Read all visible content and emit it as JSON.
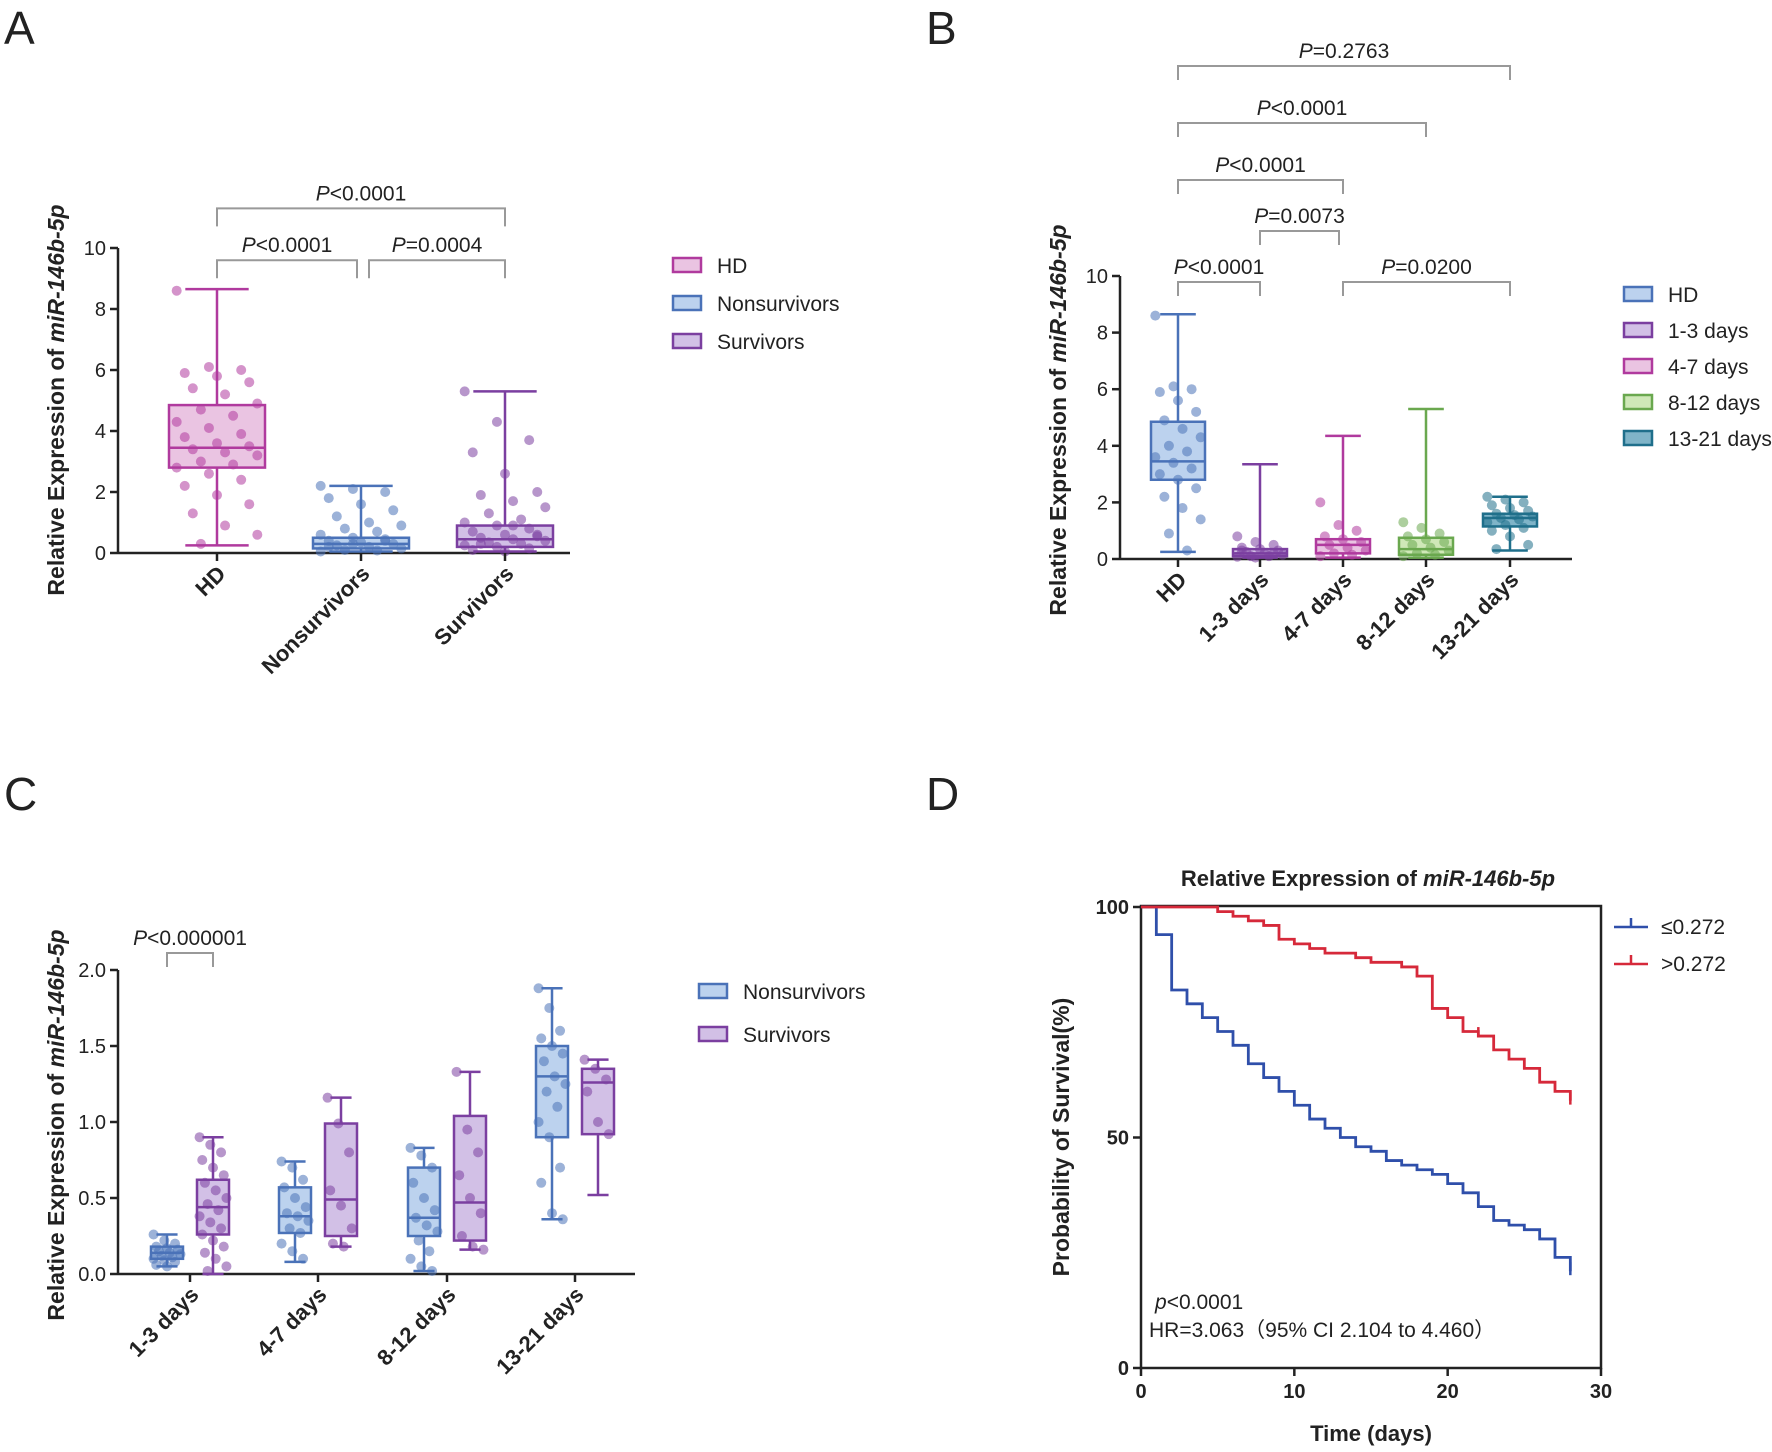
{
  "panels": {
    "A": {
      "letter": "A"
    },
    "B": {
      "letter": "B"
    },
    "C": {
      "letter": "C"
    },
    "D": {
      "letter": "D"
    }
  },
  "chart_data": [
    {
      "panel": "A",
      "type": "box",
      "ylabel_prefix": "Relative Expression of ",
      "ylabel_gene": "miR-146b-5p",
      "ylim": [
        0,
        10
      ],
      "yticks": [
        "0",
        "2",
        "4",
        "6",
        "8",
        "10"
      ],
      "categories": [
        "HD",
        "Nonsurvivors",
        "Survivors"
      ],
      "legend": [
        "HD",
        "Nonsurvivors",
        "Survivors"
      ],
      "colors": {
        "HD": "#b03a9e",
        "Nonsurvivors": "#4a72b8",
        "Survivors": "#7b3fa0"
      },
      "fills": {
        "HD": "#eac4e2",
        "Nonsurvivors": "#bcd2ee",
        "Survivors": "#d2c0e6"
      },
      "series": [
        {
          "name": "HD",
          "min": 0.25,
          "q1": 2.8,
          "median": 3.45,
          "q3": 4.85,
          "max": 8.65,
          "points": [
            8.6,
            6.1,
            6.0,
            5.9,
            5.8,
            5.6,
            5.4,
            5.2,
            4.9,
            4.7,
            4.5,
            4.3,
            4.1,
            3.9,
            3.8,
            3.6,
            3.5,
            3.4,
            3.3,
            3.2,
            3.0,
            2.9,
            2.8,
            2.6,
            2.4,
            2.2,
            1.9,
            1.6,
            1.3,
            0.9,
            0.6,
            0.3
          ]
        },
        {
          "name": "Nonsurvivors",
          "min": 0.05,
          "q1": 0.15,
          "median": 0.3,
          "q3": 0.5,
          "max": 2.2,
          "points": [
            2.2,
            2.1,
            2.0,
            1.8,
            1.6,
            1.4,
            1.2,
            1.0,
            0.9,
            0.8,
            0.7,
            0.6,
            0.5,
            0.45,
            0.4,
            0.35,
            0.3,
            0.25,
            0.2,
            0.15,
            0.1,
            0.08,
            0.05,
            0.3,
            0.4,
            0.2
          ]
        },
        {
          "name": "Survivors",
          "min": 0.05,
          "q1": 0.2,
          "median": 0.45,
          "q3": 0.9,
          "max": 5.3,
          "points": [
            5.3,
            4.3,
            3.7,
            3.3,
            2.6,
            2.0,
            1.9,
            1.7,
            1.5,
            1.3,
            1.1,
            1.0,
            0.9,
            0.8,
            0.7,
            0.6,
            0.55,
            0.5,
            0.45,
            0.4,
            0.35,
            0.3,
            0.25,
            0.2,
            0.15,
            0.1,
            0.05,
            0.6,
            0.3,
            0.9
          ]
        }
      ],
      "comparisons": [
        {
          "from": 0,
          "to": 2,
          "y": 11.3,
          "label": "<0.0001"
        },
        {
          "from": 0,
          "to": 1,
          "y": 9.6,
          "label": "<0.0001"
        },
        {
          "from": 1,
          "to": 2,
          "y": 9.6,
          "label": "=0.0004"
        }
      ]
    },
    {
      "panel": "B",
      "type": "box",
      "ylabel_prefix": "Relative Expression of ",
      "ylabel_gene": "miR-146b-5p",
      "ylim": [
        0,
        10
      ],
      "yticks": [
        "0",
        "2",
        "4",
        "6",
        "8",
        "10"
      ],
      "categories": [
        "HD",
        "1-3 days",
        "4-7 days",
        "8-12 days",
        "13-21 days"
      ],
      "legend": [
        "HD",
        "1-3 days",
        "4-7 days",
        "8-12 days",
        "13-21 days"
      ],
      "colors": {
        "HD": "#4a72b8",
        "1-3 days": "#7b3fa0",
        "4-7 days": "#b03a9e",
        "8-12 days": "#6aa84f",
        "13-21 days": "#1f6f8b"
      },
      "fills": {
        "HD": "#bcd2ee",
        "1-3 days": "#d2c0e6",
        "4-7 days": "#eac4e2",
        "8-12 days": "#cfe8b8",
        "13-21 days": "#7fb4c8"
      },
      "series": [
        {
          "name": "HD",
          "min": 0.25,
          "q1": 2.8,
          "median": 3.45,
          "q3": 4.85,
          "max": 8.65,
          "points": [
            8.6,
            6.1,
            6.0,
            5.9,
            5.6,
            5.2,
            4.9,
            4.6,
            4.3,
            4.0,
            3.8,
            3.6,
            3.4,
            3.2,
            3.0,
            2.8,
            2.5,
            2.2,
            1.8,
            1.4,
            0.9,
            0.3
          ]
        },
        {
          "name": "1-3 days",
          "min": 0.05,
          "q1": 0.1,
          "median": 0.2,
          "q3": 0.35,
          "max": 3.35,
          "points": [
            0.8,
            0.6,
            0.5,
            0.4,
            0.35,
            0.3,
            0.25,
            0.2,
            0.15,
            0.1,
            0.1,
            0.08,
            0.05,
            0.2,
            0.3
          ]
        },
        {
          "name": "4-7 days",
          "min": 0.05,
          "q1": 0.2,
          "median": 0.5,
          "q3": 0.7,
          "max": 4.35,
          "points": [
            2.0,
            1.2,
            1.0,
            0.8,
            0.7,
            0.6,
            0.5,
            0.4,
            0.3,
            0.2,
            0.15,
            0.1
          ]
        },
        {
          "name": "8-12 days",
          "min": 0.05,
          "q1": 0.15,
          "median": 0.35,
          "q3": 0.75,
          "max": 5.3,
          "points": [
            1.3,
            1.1,
            0.9,
            0.8,
            0.7,
            0.6,
            0.5,
            0.4,
            0.3,
            0.2,
            0.15,
            0.1
          ]
        },
        {
          "name": "13-21 days",
          "min": 0.3,
          "q1": 1.15,
          "median": 1.45,
          "q3": 1.6,
          "max": 2.2,
          "points": [
            2.2,
            2.1,
            2.0,
            1.9,
            1.8,
            1.7,
            1.6,
            1.55,
            1.5,
            1.45,
            1.4,
            1.3,
            1.2,
            1.1,
            1.0,
            0.8,
            0.5,
            0.35
          ]
        }
      ],
      "comparisons": [
        {
          "from": 0,
          "to": 4,
          "y": 17.5,
          "label": "=0.2763"
        },
        {
          "from": 0,
          "to": 3,
          "y": 15.4,
          "label": "<0.0001"
        },
        {
          "from": 0,
          "to": 2,
          "y": 13.4,
          "label": "<0.0001"
        },
        {
          "from": 1,
          "to": 2,
          "y": 11.6,
          "label": "=0.0073"
        },
        {
          "from": 0,
          "to": 1,
          "y": 9.8,
          "label": "<0.0001"
        },
        {
          "from": 2,
          "to": 4,
          "y": 9.8,
          "label": "=0.0200"
        }
      ]
    },
    {
      "panel": "C",
      "type": "box",
      "ylabel_prefix": "Relative Expression of ",
      "ylabel_gene": "miR-146b-5p",
      "ylim": [
        0,
        2.0
      ],
      "yticks": [
        "0.0",
        "0.5",
        "1.0",
        "1.5",
        "2.0"
      ],
      "categories": [
        "1-3 days",
        "4-7 days",
        "8-12 days",
        "13-21 days"
      ],
      "legend": [
        "Nonsurvivors",
        "Survivors"
      ],
      "colors": {
        "Nonsurvivors": "#4a72b8",
        "Survivors": "#7b3fa0"
      },
      "fills": {
        "Nonsurvivors": "#bcd2ee",
        "Survivors": "#d2c0e6"
      },
      "series": [
        {
          "name": "Nonsurvivors",
          "boxes": [
            {
              "min": 0.05,
              "q1": 0.1,
              "median": 0.14,
              "q3": 0.18,
              "max": 0.26,
              "points": [
                0.26,
                0.22,
                0.2,
                0.18,
                0.17,
                0.16,
                0.15,
                0.14,
                0.13,
                0.12,
                0.11,
                0.1,
                0.09,
                0.08,
                0.06,
                0.05
              ]
            },
            {
              "min": 0.08,
              "q1": 0.27,
              "median": 0.38,
              "q3": 0.57,
              "max": 0.74,
              "points": [
                0.74,
                0.7,
                0.62,
                0.57,
                0.5,
                0.44,
                0.4,
                0.38,
                0.35,
                0.3,
                0.27,
                0.2,
                0.15,
                0.1
              ]
            },
            {
              "min": 0.02,
              "q1": 0.25,
              "median": 0.37,
              "q3": 0.7,
              "max": 0.83,
              "points": [
                0.83,
                0.78,
                0.7,
                0.6,
                0.5,
                0.42,
                0.37,
                0.32,
                0.28,
                0.22,
                0.15,
                0.1,
                0.05,
                0.02
              ]
            },
            {
              "min": 0.36,
              "q1": 0.9,
              "median": 1.3,
              "q3": 1.5,
              "max": 1.88,
              "points": [
                1.88,
                1.75,
                1.6,
                1.55,
                1.5,
                1.45,
                1.4,
                1.3,
                1.25,
                1.2,
                1.1,
                1.0,
                0.9,
                0.7,
                0.6,
                0.4,
                0.36
              ]
            }
          ]
        },
        {
          "name": "Survivors",
          "boxes": [
            {
              "min": 0.0,
              "q1": 0.26,
              "median": 0.44,
              "q3": 0.62,
              "max": 0.9,
              "points": [
                0.9,
                0.85,
                0.8,
                0.75,
                0.7,
                0.65,
                0.6,
                0.55,
                0.5,
                0.46,
                0.42,
                0.38,
                0.34,
                0.3,
                0.26,
                0.22,
                0.18,
                0.14,
                0.1,
                0.05,
                0.02
              ]
            },
            {
              "min": 0.18,
              "q1": 0.25,
              "median": 0.49,
              "q3": 0.99,
              "max": 1.16,
              "points": [
                1.16,
                0.99,
                0.8,
                0.55,
                0.45,
                0.3,
                0.2,
                0.18
              ]
            },
            {
              "min": 0.16,
              "q1": 0.22,
              "median": 0.47,
              "q3": 1.04,
              "max": 1.33,
              "points": [
                1.33,
                0.95,
                0.8,
                0.65,
                0.5,
                0.4,
                0.25,
                0.18,
                0.16
              ]
            },
            {
              "min": 0.52,
              "q1": 0.92,
              "median": 1.26,
              "q3": 1.35,
              "max": 1.41,
              "points": [
                1.41,
                1.35,
                1.28,
                1.2,
                1.0,
                0.92
              ]
            }
          ]
        }
      ],
      "comparisons": [
        {
          "from": 0,
          "to": 0,
          "y": 2.13,
          "label": "<0.000001"
        }
      ]
    },
    {
      "panel": "D",
      "type": "line",
      "subtype": "kaplan-meier",
      "title_prefix": "Relative Expression of ",
      "title_gene": "miR-146b-5p",
      "xlabel": "Time (days)",
      "ylabel": "Probability of Survival(%)",
      "xlim": [
        0,
        30
      ],
      "ylim": [
        0,
        100
      ],
      "xticks": [
        "0",
        "10",
        "20",
        "30"
      ],
      "yticks": [
        "0",
        "50",
        "100"
      ],
      "legend_position": "right",
      "series": [
        {
          "name": "≤0.272",
          "color": "#2f4faa",
          "x": [
            0,
            1,
            2,
            3,
            4,
            5,
            6,
            7,
            8,
            9,
            10,
            11,
            12,
            13,
            14,
            15,
            16,
            17,
            18,
            19,
            20,
            21,
            22,
            23,
            24,
            25,
            26,
            27,
            28
          ],
          "y": [
            100,
            94,
            82,
            79,
            76,
            73,
            70,
            66,
            63,
            60,
            57,
            54,
            52,
            50,
            48,
            47,
            45,
            44,
            43,
            42,
            40,
            38,
            35,
            32,
            31,
            30,
            28,
            24,
            21
          ]
        },
        {
          "name": ">0.272",
          "color": "#d6293a",
          "x": [
            0,
            1,
            2,
            3,
            4,
            5,
            6,
            7,
            8,
            9,
            10,
            11,
            12,
            13,
            14,
            15,
            16,
            17,
            18,
            19,
            20,
            21,
            22,
            23,
            24,
            25,
            26,
            27,
            28
          ],
          "y": [
            100,
            100,
            100,
            100,
            100,
            99,
            98,
            97,
            96,
            93,
            92,
            91,
            90,
            90,
            89,
            88,
            88,
            87,
            85,
            78,
            76,
            73,
            72,
            69,
            67,
            65,
            62,
            60,
            58
          ]
        }
      ],
      "annotations": {
        "p_prefix": "p",
        "p_value": "<0.0001",
        "hr": "HR=3.063（95% CI 2.104 to 4.460）"
      }
    }
  ]
}
